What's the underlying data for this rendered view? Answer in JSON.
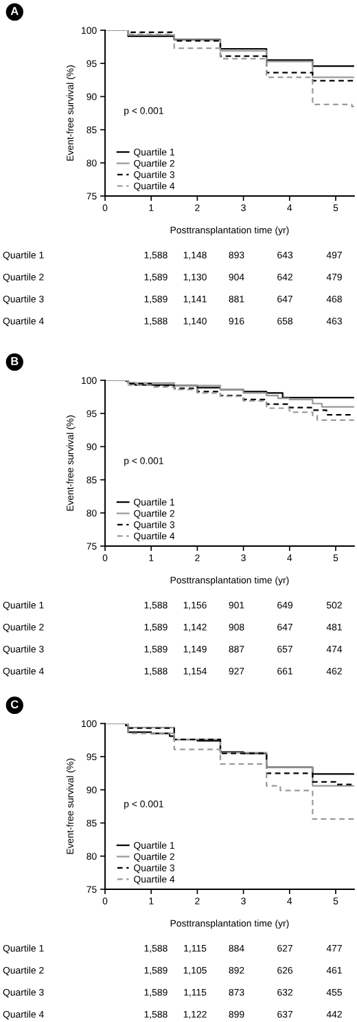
{
  "chart_data": [
    {
      "type": "step",
      "title": "A",
      "xlabel": "Posttransplantation time (yr)",
      "ylabel": "Event-free survival (%)",
      "xlim": [
        0,
        5.4
      ],
      "ylim": [
        75,
        100
      ],
      "xticks": [
        0,
        1,
        2,
        3,
        4,
        5
      ],
      "yticks": [
        75,
        80,
        85,
        90,
        95,
        100
      ],
      "legend": "bottom left",
      "annotations": [
        "p < 0.001",
        "Quartile 1",
        "1,588",
        "1,148",
        "893",
        "643",
        "497",
        "Quartile 2",
        "1,589",
        "1,130",
        "904",
        "642",
        "479",
        "Quartile 3",
        "1,589",
        "1,141",
        "881",
        "647",
        "468",
        "Quartile 4",
        "1,588",
        "1,140",
        "916",
        "658",
        "463"
      ],
      "series": [
        {
          "name": "Quartile 1",
          "color": "#000000",
          "line_style": "solid",
          "x": [
            0,
            0.5,
            1.5,
            2.5,
            3.5,
            4.5,
            5.4
          ],
          "values": [
            100,
            99.1,
            98.6,
            97.2,
            95.5,
            94.6,
            94.6
          ]
        },
        {
          "name": "Quartile 2",
          "color": "#999999",
          "line_style": "solid",
          "x": [
            0,
            0.5,
            1.5,
            2.5,
            3.5,
            4.5,
            5.4
          ],
          "values": [
            100,
            99.3,
            98.5,
            96.9,
            95.3,
            92.9,
            92.9
          ]
        },
        {
          "name": "Quartile 3",
          "color": "#000000",
          "line_style": "dashed",
          "x": [
            0,
            0.5,
            1.5,
            2.5,
            3.5,
            4.5,
            5.4
          ],
          "values": [
            100,
            99.7,
            98.4,
            96.1,
            93.6,
            92.4,
            92.4
          ]
        },
        {
          "name": "Quartile 4",
          "color": "#999999",
          "line_style": "dashed",
          "x": [
            0,
            0.5,
            1.5,
            2.5,
            3.5,
            4.5,
            5.35,
            5.4
          ],
          "values": [
            100,
            99.4,
            97.3,
            95.7,
            92.9,
            88.8,
            88.5,
            88.5
          ]
        }
      ]
    },
    {
      "type": "step",
      "title": "B",
      "xlabel": "Posttransplantation time (yr)",
      "ylabel": "Event-free survival (%)",
      "xlim": [
        0,
        5.4
      ],
      "ylim": [
        75,
        100
      ],
      "xticks": [
        0,
        1,
        2,
        3,
        4,
        5
      ],
      "yticks": [
        75,
        80,
        85,
        90,
        95,
        100
      ],
      "legend": "bottom left",
      "annotations": [
        "p < 0.001",
        "Quartile 1",
        "1,588",
        "1,156",
        "901",
        "649",
        "502",
        "Quartile 2",
        "1,589",
        "1,142",
        "908",
        "647",
        "481",
        "Quartile 3",
        "1,589",
        "1,149",
        "887",
        "657",
        "474",
        "Quartile 4",
        "1,588",
        "1,154",
        "927",
        "661",
        "462"
      ],
      "series": [
        {
          "name": "Quartile 1",
          "color": "#000000",
          "line_style": "solid",
          "x": [
            0,
            0.45,
            0.5,
            0.65,
            1.5,
            2.0,
            2.5,
            3.0,
            3.5,
            3.85,
            5.4
          ],
          "values": [
            100,
            99.9,
            99.6,
            99.3,
            99.2,
            98.9,
            98.6,
            98.3,
            98.1,
            97.4,
            97.4
          ]
        },
        {
          "name": "Quartile 2",
          "color": "#999999",
          "line_style": "solid",
          "x": [
            0,
            0.5,
            1.5,
            2.5,
            3.0,
            3.5,
            3.75,
            4.0,
            4.5,
            4.7,
            5.4
          ],
          "values": [
            100,
            99.6,
            99.2,
            98.6,
            98.1,
            97.7,
            97.3,
            97.1,
            96.5,
            96.0,
            96.0
          ]
        },
        {
          "name": "Quartile 3",
          "color": "#000000",
          "line_style": "dashed",
          "x": [
            0,
            0.5,
            1.0,
            1.5,
            2.0,
            2.5,
            3.0,
            3.5,
            4.0,
            4.5,
            4.8,
            5.4
          ],
          "values": [
            100,
            99.5,
            99.2,
            98.8,
            98.3,
            97.7,
            97.1,
            96.4,
            95.9,
            95.5,
            94.8,
            94.8
          ]
        },
        {
          "name": "Quartile 4",
          "color": "#999999",
          "line_style": "dashed",
          "x": [
            0,
            0.5,
            1.0,
            1.5,
            2.0,
            2.5,
            3.0,
            3.5,
            4.0,
            4.5,
            4.6,
            5.4
          ],
          "values": [
            100,
            99.3,
            99.0,
            98.6,
            98.1,
            97.6,
            96.9,
            95.8,
            95.2,
            94.7,
            94.0,
            94.0
          ]
        }
      ]
    },
    {
      "type": "step",
      "title": "C",
      "xlabel": "Posttransplantation time (yr)",
      "ylabel": "Event-free survival (%)",
      "xlim": [
        0,
        5.4
      ],
      "ylim": [
        75,
        100
      ],
      "xticks": [
        0,
        1,
        2,
        3,
        4,
        5
      ],
      "yticks": [
        75,
        80,
        85,
        90,
        95,
        100
      ],
      "legend": "bottom left",
      "annotations": [
        "p < 0.001",
        "Quartile 1",
        "1,588",
        "1,115",
        "884",
        "627",
        "477",
        "Quartile 2",
        "1,589",
        "1,105",
        "892",
        "626",
        "461",
        "Quartile 3",
        "1,589",
        "1,115",
        "873",
        "632",
        "455",
        "Quartile 4",
        "1,588",
        "1,122",
        "899",
        "637",
        "442"
      ],
      "series": [
        {
          "name": "Quartile 1",
          "color": "#000000",
          "line_style": "solid",
          "x": [
            0,
            0.45,
            0.5,
            1.0,
            1.4,
            1.5,
            2.0,
            2.5,
            3.0,
            3.5,
            4.5,
            5.4
          ],
          "values": [
            100,
            99.7,
            98.7,
            98.5,
            98.1,
            97.6,
            97.4,
            95.7,
            95.5,
            93.4,
            92.4,
            92.4
          ]
        },
        {
          "name": "Quartile 2",
          "color": "#999999",
          "line_style": "solid",
          "x": [
            0,
            0.5,
            1.5,
            2.5,
            3.5,
            4.5,
            5.4
          ],
          "values": [
            100,
            99.4,
            97.6,
            95.6,
            93.4,
            90.6,
            90.6
          ]
        },
        {
          "name": "Quartile 3",
          "color": "#000000",
          "line_style": "dashed",
          "x": [
            0,
            0.5,
            1.5,
            2.5,
            3.5,
            4.5,
            5.0,
            5.4
          ],
          "values": [
            100,
            99.3,
            97.6,
            95.5,
            92.5,
            91.2,
            90.8,
            90.8
          ]
        },
        {
          "name": "Quartile 4",
          "color": "#999999",
          "line_style": "dashed",
          "x": [
            0,
            0.5,
            1.5,
            2.5,
            3.5,
            3.8,
            4.5,
            5.4
          ],
          "values": [
            100,
            98.5,
            96.1,
            93.9,
            90.6,
            89.9,
            85.6,
            85.3
          ]
        }
      ]
    }
  ]
}
